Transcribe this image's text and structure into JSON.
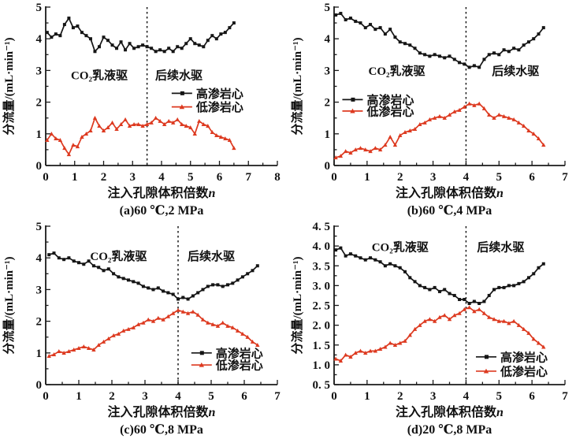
{
  "page": {
    "background": "#ffffff"
  },
  "figure": {
    "colors": {
      "high": "#151515",
      "low": "#dd3a20",
      "axis": "#1a1a1a",
      "text": "#111111"
    },
    "series_labels": {
      "high": "高渗岩心",
      "low": "低渗岩心"
    }
  },
  "chart_data": [
    {
      "id": "a",
      "type": "line",
      "caption": "(a)60 ℃,2 MPa",
      "xlabel": "注入孔隙体积倍数",
      "xlabel_var": "n",
      "ylabel": "分流量/(mL·min⁻¹)",
      "xlim": [
        0,
        8
      ],
      "ylim": [
        0,
        5
      ],
      "xticks": [
        0,
        1,
        2,
        3,
        4,
        5,
        6,
        7,
        8
      ],
      "yticks": [
        0,
        1,
        2,
        3,
        4,
        5
      ],
      "ytick_labels": [
        "0",
        "1",
        "2",
        "3",
        "4",
        "5"
      ],
      "x_minor_step": 0.5,
      "y_minor_step": 0.5,
      "divider_x": 3.5,
      "annotations": [
        {
          "name": "co2-emulsion-flooding-label",
          "text": "CO₂乳液驱",
          "x": 1.85,
          "y": 2.85
        },
        {
          "name": "subsequent-water-flooding-label",
          "text": "后续水驱",
          "x": 4.6,
          "y": 2.85
        }
      ],
      "legend": {
        "x": 4.35,
        "rows_y": [
          2.28,
          1.85
        ]
      },
      "series": [
        {
          "name": "高渗岩心",
          "key": "high",
          "marker": "square",
          "x": [
            0.05,
            0.2,
            0.35,
            0.5,
            0.65,
            0.8,
            0.95,
            1.1,
            1.25,
            1.4,
            1.55,
            1.7,
            1.85,
            2.0,
            2.15,
            2.3,
            2.45,
            2.6,
            2.75,
            2.9,
            3.05,
            3.2,
            3.35,
            3.5,
            3.65,
            3.8,
            3.95,
            4.1,
            4.25,
            4.4,
            4.55,
            4.7,
            4.85,
            5.0,
            5.15,
            5.3,
            5.45,
            5.6,
            5.75,
            5.9,
            6.05,
            6.2,
            6.35,
            6.5
          ],
          "y": [
            4.2,
            4.05,
            4.15,
            4.1,
            4.45,
            4.65,
            4.35,
            4.4,
            4.2,
            4.1,
            4.0,
            3.6,
            3.75,
            4.05,
            3.95,
            3.8,
            3.7,
            3.9,
            3.65,
            3.85,
            3.7,
            3.75,
            3.8,
            3.75,
            3.7,
            3.6,
            3.65,
            3.6,
            3.7,
            3.6,
            3.75,
            3.7,
            3.85,
            4.0,
            3.85,
            3.8,
            3.75,
            3.95,
            4.1,
            4.0,
            4.15,
            4.2,
            4.35,
            4.5
          ]
        },
        {
          "name": "低渗岩心",
          "key": "low",
          "marker": "triangle",
          "x": [
            0.05,
            0.2,
            0.35,
            0.5,
            0.65,
            0.8,
            0.95,
            1.1,
            1.25,
            1.4,
            1.55,
            1.7,
            1.85,
            2.0,
            2.15,
            2.3,
            2.45,
            2.6,
            2.75,
            2.9,
            3.05,
            3.2,
            3.35,
            3.5,
            3.65,
            3.8,
            3.95,
            4.1,
            4.25,
            4.4,
            4.55,
            4.7,
            4.85,
            5.0,
            5.15,
            5.3,
            5.45,
            5.6,
            5.75,
            5.9,
            6.05,
            6.2,
            6.35,
            6.5
          ],
          "y": [
            0.8,
            1.0,
            0.85,
            0.8,
            0.55,
            0.35,
            0.65,
            0.6,
            0.9,
            1.0,
            1.1,
            1.5,
            1.25,
            1.1,
            1.2,
            1.35,
            1.15,
            1.3,
            1.45,
            1.25,
            1.3,
            1.3,
            1.25,
            1.3,
            1.35,
            1.5,
            1.4,
            1.3,
            1.4,
            1.35,
            1.45,
            1.3,
            1.25,
            1.2,
            1.0,
            1.4,
            1.3,
            1.25,
            1.05,
            0.95,
            0.9,
            0.85,
            0.8,
            0.55
          ]
        }
      ]
    },
    {
      "id": "b",
      "type": "line",
      "caption": "(b)60 ℃,4 MPa",
      "xlabel": "注入孔隙体积倍数",
      "xlabel_var": "n",
      "ylabel": "分流量/(mL·min⁻¹)",
      "xlim": [
        0,
        7
      ],
      "ylim": [
        0,
        5
      ],
      "xticks": [
        0,
        1,
        2,
        3,
        4,
        5,
        6,
        7
      ],
      "yticks": [
        0,
        1,
        2,
        3,
        4,
        5
      ],
      "ytick_labels": [
        "0",
        "1",
        "2",
        "3",
        "4",
        "5"
      ],
      "x_minor_step": 0.5,
      "y_minor_step": 0.5,
      "divider_x": 4,
      "annotations": [
        {
          "name": "co2-emulsion-flooding-label",
          "text": "CO₂乳液驱",
          "x": 1.9,
          "y": 2.98
        },
        {
          "name": "subsequent-water-flooding-label",
          "text": "后续水驱",
          "x": 5.5,
          "y": 2.98
        }
      ],
      "legend": {
        "x": 0.25,
        "rows_y": [
          2.08,
          1.72
        ]
      },
      "series": [
        {
          "name": "高渗岩心",
          "key": "high",
          "marker": "square",
          "x": [
            0.05,
            0.2,
            0.35,
            0.5,
            0.65,
            0.8,
            0.95,
            1.1,
            1.25,
            1.4,
            1.55,
            1.7,
            1.85,
            2.0,
            2.15,
            2.3,
            2.45,
            2.6,
            2.75,
            2.9,
            3.05,
            3.2,
            3.35,
            3.5,
            3.65,
            3.8,
            3.95,
            4.1,
            4.25,
            4.4,
            4.55,
            4.7,
            4.85,
            5.0,
            5.15,
            5.3,
            5.45,
            5.6,
            5.75,
            5.9,
            6.05,
            6.2,
            6.35
          ],
          "y": [
            4.75,
            4.8,
            4.6,
            4.65,
            4.55,
            4.5,
            4.35,
            4.45,
            4.3,
            4.35,
            4.15,
            4.3,
            4.05,
            3.9,
            3.85,
            3.8,
            3.7,
            3.55,
            3.5,
            3.45,
            3.5,
            3.45,
            3.4,
            3.45,
            3.35,
            3.25,
            3.2,
            3.1,
            3.15,
            3.1,
            3.35,
            3.5,
            3.55,
            3.5,
            3.65,
            3.6,
            3.7,
            3.65,
            3.8,
            3.9,
            4.0,
            4.15,
            4.35
          ]
        },
        {
          "name": "低渗岩心",
          "key": "low",
          "marker": "triangle",
          "x": [
            0.05,
            0.2,
            0.35,
            0.5,
            0.65,
            0.8,
            0.95,
            1.1,
            1.25,
            1.4,
            1.55,
            1.7,
            1.85,
            2.0,
            2.15,
            2.3,
            2.45,
            2.6,
            2.75,
            2.9,
            3.05,
            3.2,
            3.35,
            3.5,
            3.65,
            3.8,
            3.95,
            4.1,
            4.25,
            4.4,
            4.55,
            4.7,
            4.85,
            5.0,
            5.15,
            5.3,
            5.45,
            5.6,
            5.75,
            5.9,
            6.05,
            6.2,
            6.35
          ],
          "y": [
            0.25,
            0.3,
            0.45,
            0.4,
            0.5,
            0.55,
            0.5,
            0.45,
            0.55,
            0.5,
            0.65,
            0.9,
            0.65,
            0.95,
            1.05,
            1.1,
            1.15,
            1.3,
            1.35,
            1.45,
            1.5,
            1.55,
            1.5,
            1.6,
            1.7,
            1.75,
            1.85,
            1.95,
            1.9,
            1.95,
            1.8,
            1.6,
            1.5,
            1.6,
            1.55,
            1.5,
            1.45,
            1.35,
            1.25,
            1.1,
            1.0,
            0.85,
            0.65
          ]
        }
      ]
    },
    {
      "id": "c",
      "type": "line",
      "caption": "(c)60 ℃,8 MPa",
      "xlabel": "注入孔隙体积倍数",
      "xlabel_var": "n",
      "ylabel": "分流量/(mL·min⁻¹)",
      "xlim": [
        0,
        7
      ],
      "ylim": [
        0,
        5
      ],
      "xticks": [
        0,
        1,
        2,
        3,
        4,
        5,
        6,
        7
      ],
      "yticks": [
        0,
        1,
        2,
        3,
        4,
        5
      ],
      "ytick_labels": [
        "0",
        "1",
        "2",
        "3",
        "4",
        "5"
      ],
      "x_minor_step": 0.5,
      "y_minor_step": 0.5,
      "divider_x": 4,
      "annotations": [
        {
          "name": "co2-emulsion-flooding-label",
          "text": "CO₂乳液驱",
          "x": 2.2,
          "y": 4.05
        },
        {
          "name": "subsequent-water-flooding-label",
          "text": "后续水驱",
          "x": 5.0,
          "y": 4.05
        }
      ],
      "legend": {
        "x": 4.4,
        "rows_y": [
          1.0,
          0.62
        ]
      },
      "series": [
        {
          "name": "高渗岩心",
          "key": "high",
          "marker": "square",
          "x": [
            0.1,
            0.25,
            0.4,
            0.55,
            0.7,
            0.85,
            1.0,
            1.15,
            1.3,
            1.45,
            1.6,
            1.75,
            1.9,
            2.05,
            2.2,
            2.35,
            2.5,
            2.65,
            2.8,
            2.95,
            3.1,
            3.25,
            3.4,
            3.55,
            3.7,
            3.85,
            4.0,
            4.15,
            4.3,
            4.45,
            4.6,
            4.75,
            4.9,
            5.05,
            5.2,
            5.35,
            5.5,
            5.65,
            5.8,
            5.95,
            6.1,
            6.25,
            6.4
          ],
          "y": [
            4.1,
            4.15,
            4.0,
            3.95,
            4.0,
            3.9,
            3.85,
            3.8,
            3.9,
            3.75,
            3.7,
            3.6,
            3.65,
            3.5,
            3.4,
            3.35,
            3.3,
            3.25,
            3.2,
            3.1,
            3.05,
            3.0,
            3.05,
            2.95,
            2.9,
            2.85,
            2.7,
            2.75,
            2.7,
            2.8,
            2.9,
            3.0,
            3.1,
            3.15,
            3.15,
            3.1,
            3.15,
            3.2,
            3.3,
            3.4,
            3.5,
            3.6,
            3.75
          ]
        },
        {
          "name": "低渗岩心",
          "key": "low",
          "marker": "triangle",
          "x": [
            0.1,
            0.25,
            0.4,
            0.55,
            0.7,
            0.85,
            1.0,
            1.15,
            1.3,
            1.45,
            1.6,
            1.75,
            1.9,
            2.05,
            2.2,
            2.35,
            2.5,
            2.65,
            2.8,
            2.95,
            3.1,
            3.25,
            3.4,
            3.55,
            3.7,
            3.85,
            4.0,
            4.15,
            4.3,
            4.45,
            4.6,
            4.75,
            4.9,
            5.05,
            5.2,
            5.35,
            5.5,
            5.65,
            5.8,
            5.95,
            6.1,
            6.25,
            6.4
          ],
          "y": [
            0.9,
            0.95,
            1.05,
            1.0,
            1.05,
            1.1,
            1.15,
            1.2,
            1.15,
            1.1,
            1.25,
            1.35,
            1.45,
            1.55,
            1.6,
            1.7,
            1.75,
            1.8,
            1.9,
            1.95,
            2.05,
            2.0,
            2.1,
            2.05,
            2.15,
            2.25,
            2.35,
            2.3,
            2.25,
            2.3,
            2.2,
            2.05,
            1.95,
            1.9,
            1.85,
            1.95,
            1.85,
            1.8,
            1.7,
            1.6,
            1.5,
            1.35,
            1.25
          ]
        }
      ]
    },
    {
      "id": "d",
      "type": "line",
      "caption": "(d)20 ℃,8 MPa",
      "xlabel": "注入孔隙体积倍数",
      "xlabel_var": "n",
      "ylabel": "分流量/(mL·min⁻¹)",
      "xlim": [
        0,
        7
      ],
      "ylim": [
        0.5,
        4.5
      ],
      "xticks": [
        0,
        1,
        2,
        3,
        4,
        5,
        6,
        7
      ],
      "yticks": [
        0.5,
        1.0,
        1.5,
        2.0,
        2.5,
        3.0,
        3.5,
        4.0,
        4.5
      ],
      "ytick_labels": [
        "0. 5",
        "1. 0",
        "1. 5",
        "2. 0",
        "2. 5",
        "3. 0",
        "3. 5",
        "4. 0",
        "4. 5"
      ],
      "x_minor_step": 0.5,
      "y_minor_step": 0.25,
      "divider_x": 4,
      "annotations": [
        {
          "name": "co2-emulsion-flooding-label",
          "text": "CO₂乳液驱",
          "x": 2.0,
          "y": 3.97
        },
        {
          "name": "subsequent-water-flooding-label",
          "text": "后续水驱",
          "x": 5.05,
          "y": 3.97
        }
      ],
      "legend": {
        "x": 4.3,
        "rows_y": [
          1.2,
          0.84
        ]
      },
      "series": [
        {
          "name": "高渗岩心",
          "key": "high",
          "marker": "square",
          "x": [
            0.05,
            0.2,
            0.35,
            0.5,
            0.65,
            0.8,
            0.95,
            1.1,
            1.25,
            1.4,
            1.55,
            1.7,
            1.85,
            2.0,
            2.15,
            2.3,
            2.45,
            2.6,
            2.75,
            2.9,
            3.05,
            3.2,
            3.35,
            3.5,
            3.65,
            3.8,
            3.95,
            4.1,
            4.25,
            4.4,
            4.55,
            4.7,
            4.85,
            5.0,
            5.15,
            5.3,
            5.45,
            5.6,
            5.75,
            5.9,
            6.05,
            6.2,
            6.35
          ],
          "y": [
            3.9,
            3.95,
            3.75,
            3.8,
            3.75,
            3.7,
            3.65,
            3.7,
            3.65,
            3.6,
            3.5,
            3.55,
            3.5,
            3.45,
            3.35,
            3.2,
            3.1,
            3.0,
            2.95,
            2.9,
            2.95,
            2.85,
            2.9,
            2.8,
            2.75,
            2.65,
            2.65,
            2.55,
            2.6,
            2.55,
            2.6,
            2.75,
            2.9,
            2.95,
            2.95,
            3.0,
            3.0,
            3.05,
            3.1,
            3.2,
            3.3,
            3.45,
            3.55
          ]
        },
        {
          "name": "低渗岩心",
          "key": "low",
          "marker": "triangle",
          "x": [
            0.05,
            0.2,
            0.35,
            0.5,
            0.65,
            0.8,
            0.95,
            1.1,
            1.25,
            1.4,
            1.55,
            1.7,
            1.85,
            2.0,
            2.15,
            2.3,
            2.45,
            2.6,
            2.75,
            2.9,
            3.05,
            3.2,
            3.35,
            3.5,
            3.65,
            3.8,
            3.95,
            4.1,
            4.25,
            4.4,
            4.55,
            4.7,
            4.85,
            5.0,
            5.15,
            5.3,
            5.45,
            5.6,
            5.75,
            5.9,
            6.05,
            6.2,
            6.35
          ],
          "y": [
            1.15,
            1.1,
            1.25,
            1.2,
            1.3,
            1.35,
            1.3,
            1.35,
            1.35,
            1.4,
            1.45,
            1.55,
            1.5,
            1.55,
            1.6,
            1.75,
            1.9,
            2.0,
            2.1,
            2.15,
            2.1,
            2.2,
            2.25,
            2.15,
            2.25,
            2.3,
            2.4,
            2.45,
            2.35,
            2.4,
            2.3,
            2.2,
            2.15,
            2.1,
            2.1,
            2.05,
            2.1,
            2.0,
            1.9,
            1.8,
            1.65,
            1.55,
            1.45
          ]
        }
      ]
    }
  ]
}
